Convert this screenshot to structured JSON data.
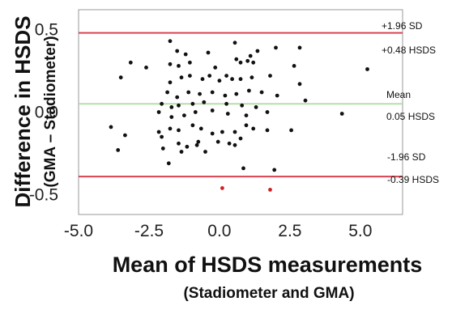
{
  "chart_data": {
    "type": "scatter",
    "xlabel": "Mean of HSDS measurements",
    "xlabel_sub": "(Stadiometer and GMA)",
    "ylabel": "Difference in HSDS",
    "ylabel_sub": "(GMA – Stadiometer)",
    "xlim": [
      -5.0,
      6.5
    ],
    "ylim": [
      -0.62,
      0.62
    ],
    "xticks": [
      "-5.0",
      "-2.5",
      "0.0",
      "2.5",
      "5.0"
    ],
    "yticks": [
      "0.5",
      "0.0",
      "-0.5"
    ],
    "grid": false,
    "reference_lines": [
      {
        "y": 0.48,
        "color": "#d9434f",
        "label_top": "+1.96 SD",
        "label_bottom": "+0.48 HSDS"
      },
      {
        "y": 0.05,
        "color": "#a6d99a",
        "label_top": "Mean",
        "label_bottom": "0.05 HSDS"
      },
      {
        "y": -0.39,
        "color": "#d9434f",
        "label_top": "-1.96 SD",
        "label_bottom": "-0.39 HSDS"
      }
    ],
    "series": [
      {
        "color": "#111111",
        "points": [
          [
            -1.75,
            0.43
          ],
          [
            -1.5,
            0.37
          ],
          [
            -1.2,
            0.35
          ],
          [
            -0.4,
            0.36
          ],
          [
            0.55,
            0.42
          ],
          [
            1.1,
            0.34
          ],
          [
            2.0,
            0.39
          ],
          [
            2.85,
            0.39
          ],
          [
            -3.5,
            0.21
          ],
          [
            -3.15,
            0.3
          ],
          [
            -2.6,
            0.27
          ],
          [
            -1.75,
            0.29
          ],
          [
            -1.45,
            0.28
          ],
          [
            -1.05,
            0.3
          ],
          [
            -0.15,
            0.27
          ],
          [
            0.6,
            0.32
          ],
          [
            0.75,
            0.3
          ],
          [
            1.0,
            0.31
          ],
          [
            1.2,
            0.3
          ],
          [
            1.35,
            0.37
          ],
          [
            2.65,
            0.28
          ],
          [
            5.25,
            0.26
          ],
          [
            -1.75,
            0.18
          ],
          [
            -1.35,
            0.21
          ],
          [
            -1.05,
            0.22
          ],
          [
            -0.6,
            0.2
          ],
          [
            -0.35,
            0.22
          ],
          [
            0.0,
            0.19
          ],
          [
            0.25,
            0.22
          ],
          [
            0.45,
            0.2
          ],
          [
            0.75,
            0.2
          ],
          [
            1.15,
            0.21
          ],
          [
            1.8,
            0.22
          ],
          [
            2.85,
            0.17
          ],
          [
            -1.85,
            0.12
          ],
          [
            -1.5,
            0.09
          ],
          [
            -1.1,
            0.12
          ],
          [
            -0.7,
            0.11
          ],
          [
            -0.25,
            0.12
          ],
          [
            0.2,
            0.1
          ],
          [
            0.6,
            0.11
          ],
          [
            1.05,
            0.13
          ],
          [
            1.5,
            0.12
          ],
          [
            2.05,
            0.1
          ],
          [
            3.05,
            0.07
          ],
          [
            -2.05,
            0.05
          ],
          [
            -1.7,
            0.03
          ],
          [
            -1.45,
            0.04
          ],
          [
            -0.95,
            0.05
          ],
          [
            -0.55,
            0.06
          ],
          [
            0.25,
            0.05
          ],
          [
            0.8,
            0.04
          ],
          [
            1.3,
            0.03
          ],
          [
            -2.15,
            0.0
          ],
          [
            -1.7,
            -0.03
          ],
          [
            -1.25,
            -0.02
          ],
          [
            -0.85,
            0.0
          ],
          [
            -0.25,
            0.01
          ],
          [
            0.3,
            -0.01
          ],
          [
            0.95,
            -0.02
          ],
          [
            1.7,
            0.0
          ],
          [
            4.35,
            -0.01
          ],
          [
            -3.85,
            -0.09
          ],
          [
            -2.15,
            -0.12
          ],
          [
            -1.75,
            -0.1
          ],
          [
            -1.45,
            -0.11
          ],
          [
            -0.95,
            -0.08
          ],
          [
            -0.65,
            -0.1
          ],
          [
            -0.25,
            -0.13
          ],
          [
            0.1,
            -0.12
          ],
          [
            0.55,
            -0.12
          ],
          [
            0.95,
            -0.08
          ],
          [
            1.2,
            -0.1
          ],
          [
            1.7,
            -0.11
          ],
          [
            2.55,
            -0.11
          ],
          [
            -3.35,
            -0.14
          ],
          [
            -2.05,
            -0.15
          ],
          [
            -1.45,
            -0.19
          ],
          [
            -1.15,
            -0.21
          ],
          [
            -0.75,
            -0.18
          ],
          [
            -0.05,
            -0.18
          ],
          [
            0.35,
            -0.19
          ],
          [
            0.55,
            -0.2
          ],
          [
            0.75,
            -0.16
          ],
          [
            -3.6,
            -0.23
          ],
          [
            -2.0,
            -0.22
          ],
          [
            -1.35,
            -0.24
          ],
          [
            -0.5,
            -0.24
          ],
          [
            -0.8,
            -0.2
          ],
          [
            -1.8,
            -0.31
          ],
          [
            0.85,
            -0.34
          ],
          [
            1.95,
            -0.35
          ]
        ]
      },
      {
        "color": "#d02020",
        "points": [
          [
            0.1,
            -0.46
          ],
          [
            1.8,
            -0.47
          ]
        ]
      }
    ]
  }
}
